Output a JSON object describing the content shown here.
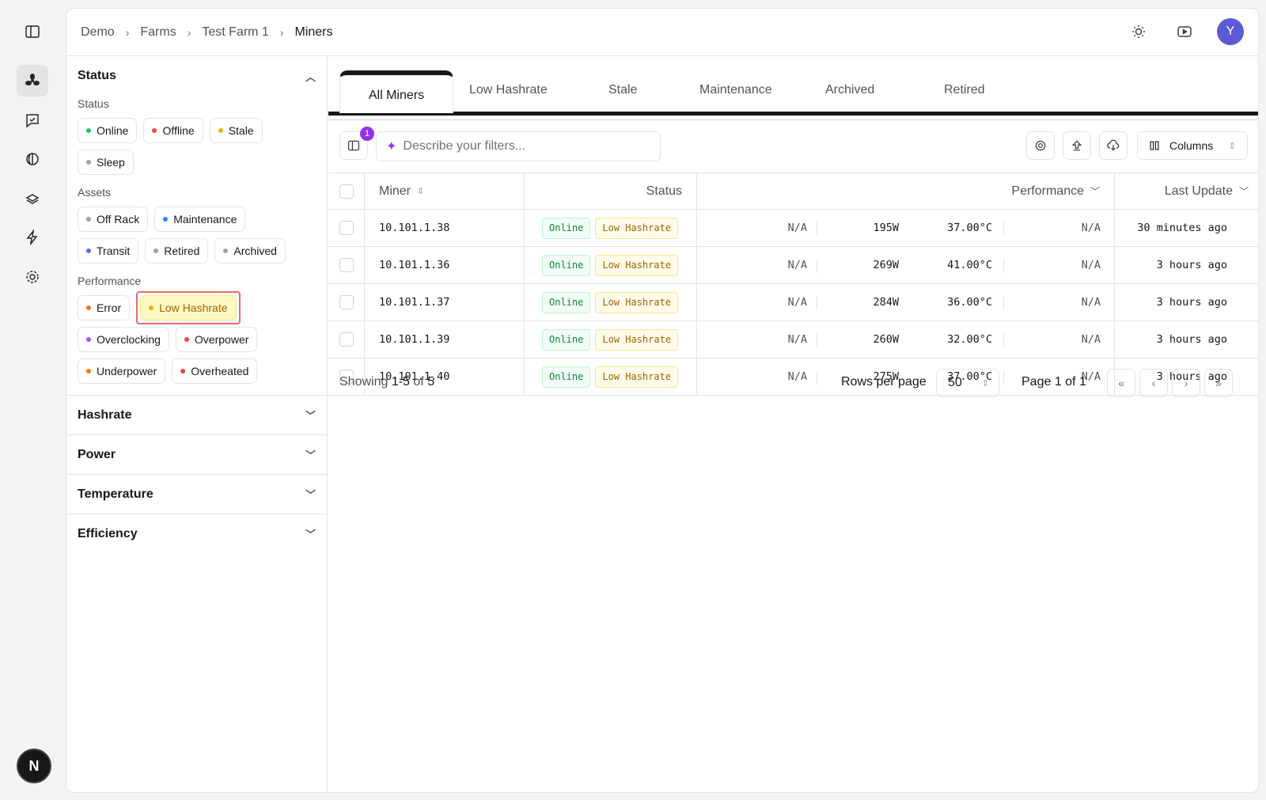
{
  "breadcrumb": [
    "Demo",
    "Farms",
    "Test Farm 1",
    "Miners"
  ],
  "user": {
    "initial": "Y"
  },
  "workspace": {
    "initial": "N"
  },
  "filters": {
    "status_section": "Status",
    "status_label": "Status",
    "status_chips": [
      {
        "label": "Online",
        "color": "#22c55e"
      },
      {
        "label": "Offline",
        "color": "#ef4444"
      },
      {
        "label": "Stale",
        "color": "#eab308"
      },
      {
        "label": "Sleep",
        "color": "#9ca3af"
      }
    ],
    "assets_label": "Assets",
    "assets_chips": [
      {
        "label": "Off Rack",
        "color": "#9ca3af"
      },
      {
        "label": "Maintenance",
        "color": "#3b82f6"
      },
      {
        "label": "Transit",
        "color": "#6366f1"
      },
      {
        "label": "Retired",
        "color": "#9ca3af"
      },
      {
        "label": "Archived",
        "color": "#9ca3af"
      }
    ],
    "performance_label": "Performance",
    "performance_chips": [
      {
        "label": "Error",
        "color": "#f97316"
      },
      {
        "label": "Low Hashrate",
        "color": "#eab308",
        "selected": true
      },
      {
        "label": "Overclocking",
        "color": "#a855f7"
      },
      {
        "label": "Overpower",
        "color": "#ef4444"
      },
      {
        "label": "Underpower",
        "color": "#f97316"
      },
      {
        "label": "Overheated",
        "color": "#ef4444"
      }
    ],
    "accordions": [
      "Hashrate",
      "Power",
      "Temperature",
      "Efficiency"
    ]
  },
  "tabs": [
    "All Miners",
    "Low Hashrate",
    "Stale",
    "Maintenance",
    "Archived",
    "Retired"
  ],
  "toolbar": {
    "filter_badge": "1",
    "search_placeholder": "Describe your filters...",
    "columns_label": "Columns"
  },
  "table": {
    "headers": {
      "miner": "Miner",
      "status": "Status",
      "performance": "Performance",
      "last_update": "Last Update"
    },
    "rows": [
      {
        "ip": "10.101.1.38",
        "status": "Online",
        "flag": "Low Hashrate",
        "hashrate": "N/A",
        "power": "195W",
        "temp": "37.00°C",
        "efficiency": "N/A",
        "updated": "30 minutes ago"
      },
      {
        "ip": "10.101.1.36",
        "status": "Online",
        "flag": "Low Hashrate",
        "hashrate": "N/A",
        "power": "269W",
        "temp": "41.00°C",
        "efficiency": "N/A",
        "updated": "3 hours ago"
      },
      {
        "ip": "10.101.1.37",
        "status": "Online",
        "flag": "Low Hashrate",
        "hashrate": "N/A",
        "power": "284W",
        "temp": "36.00°C",
        "efficiency": "N/A",
        "updated": "3 hours ago"
      },
      {
        "ip": "10.101.1.39",
        "status": "Online",
        "flag": "Low Hashrate",
        "hashrate": "N/A",
        "power": "260W",
        "temp": "32.00°C",
        "efficiency": "N/A",
        "updated": "3 hours ago"
      },
      {
        "ip": "10.101.1.40",
        "status": "Online",
        "flag": "Low Hashrate",
        "hashrate": "N/A",
        "power": "275W",
        "temp": "37.00°C",
        "efficiency": "N/A",
        "updated": "3 hours ago"
      }
    ]
  },
  "pagination": {
    "showing_prefix": "Showing",
    "range": "1-5",
    "of": "of",
    "total": "5",
    "rows_per_page_label": "Rows per page",
    "rows_per_page": "50",
    "page_label": "Page 1 of 1"
  }
}
